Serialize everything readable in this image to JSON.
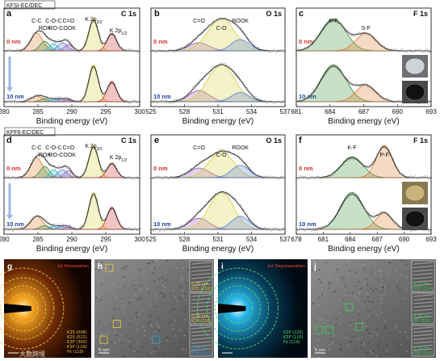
{
  "colors": {
    "raw": "#8a8a8a",
    "fit": "#1a1a1a",
    "green": "#3a8f3a",
    "yellow": "#d4cf3a",
    "blue": "#5b7fd6",
    "orange": "#e07b2a",
    "red": "#d0302b",
    "purple": "#9b59b6",
    "cyan": "#2bbfcf",
    "depth0": "#d0302b",
    "depth10": "#1f3f9f"
  },
  "panels": [
    {
      "id": "a",
      "letter": "a",
      "title": "C 1s",
      "condition": "KFSI-EC/DEC",
      "xlabel": "Binding energy (eV)",
      "ticks": [
        "280",
        "285",
        "290",
        "295",
        "300"
      ],
      "depth_top": "0 nm",
      "depth_bottom": "10 nm",
      "peak_labels": [
        "C-C",
        "ROK",
        "C-O-C",
        "RO-COOK",
        "C=O",
        "K 2p3/2",
        "K 2p1/2"
      ],
      "chart_data": {
        "type": "line",
        "xlim": [
          280,
          300
        ],
        "x_reversed": false,
        "components_top": [
          {
            "name": "C-C",
            "center": 284.8,
            "color": "orange"
          },
          {
            "name": "ROK",
            "center": 286.0,
            "color": "green"
          },
          {
            "name": "C-O-C",
            "center": 287.3,
            "color": "cyan"
          },
          {
            "name": "RO-COOK",
            "center": 288.6,
            "color": "blue"
          },
          {
            "name": "C=O",
            "center": 289.5,
            "color": "purple"
          },
          {
            "name": "K 2p3/2",
            "center": 293.2,
            "color": "yellow"
          },
          {
            "name": "K 2p1/2",
            "center": 295.9,
            "color": "red"
          }
        ]
      }
    },
    {
      "id": "b",
      "letter": "b",
      "title": "O 1s",
      "condition": "",
      "xlabel": "Binding energy (eV)",
      "ticks": [
        "525",
        "528",
        "531",
        "534",
        "537"
      ],
      "depth_top": "0 nm",
      "depth_bottom": "10 nm",
      "peak_labels": [
        "C=O",
        "C-O",
        "ROOK"
      ],
      "chart_data": {
        "type": "line",
        "xlim": [
          525,
          537
        ],
        "components": [
          {
            "name": "C=O",
            "center": 529.3,
            "color": "purple"
          },
          {
            "name": "C-O",
            "center": 531.3,
            "color": "yellow"
          },
          {
            "name": "ROOK",
            "center": 533.0,
            "color": "blue"
          }
        ]
      }
    },
    {
      "id": "c",
      "letter": "c",
      "title": "F 1s",
      "condition": "",
      "xlabel": "Binding energy (eV)",
      "ticks": [
        "681",
        "684",
        "687",
        "690",
        "693"
      ],
      "depth_top": "0 nm",
      "depth_bottom": "10 nm",
      "peak_labels": [
        "K-F",
        "S-F"
      ],
      "chart_data": {
        "type": "line",
        "xlim": [
          681,
          693
        ],
        "components": [
          {
            "name": "K-F",
            "center": 684.3,
            "color": "green"
          },
          {
            "name": "S-F",
            "center": 687.2,
            "color": "orange"
          }
        ]
      }
    },
    {
      "id": "d",
      "letter": "d",
      "title": "C 1s",
      "condition": "KPF6-EC/DEC",
      "xlabel": "Binding energy (eV)",
      "ticks": [
        "280",
        "285",
        "290",
        "295",
        "300"
      ],
      "depth_top": "0 nm",
      "depth_bottom": "10 nm",
      "peak_labels": [
        "C-C",
        "ROK",
        "C-O-C",
        "RO-COOK",
        "C=O",
        "K 2p3/2",
        "K 2p1/2"
      ],
      "chart_data": {
        "type": "line",
        "xlim": [
          280,
          300
        ],
        "components": [
          {
            "name": "C-C",
            "center": 284.8,
            "color": "orange"
          },
          {
            "name": "ROK",
            "center": 286.0,
            "color": "green"
          },
          {
            "name": "C-O-C",
            "center": 287.3,
            "color": "cyan"
          },
          {
            "name": "RO-COOK",
            "center": 288.6,
            "color": "blue"
          },
          {
            "name": "C=O",
            "center": 289.5,
            "color": "purple"
          },
          {
            "name": "K 2p3/2",
            "center": 293.2,
            "color": "yellow"
          },
          {
            "name": "K 2p1/2",
            "center": 295.9,
            "color": "red"
          }
        ]
      }
    },
    {
      "id": "e",
      "letter": "e",
      "title": "O 1s",
      "condition": "",
      "xlabel": "Binding energy (eV)",
      "ticks": [
        "525",
        "528",
        "531",
        "534",
        "537"
      ],
      "depth_top": "0 nm",
      "depth_bottom": "10 nm",
      "peak_labels": [
        "C=O",
        "C-O",
        "ROOK"
      ],
      "chart_data": {
        "type": "line",
        "xlim": [
          525,
          537
        ],
        "components": [
          {
            "name": "C=O",
            "center": 529.3,
            "color": "purple"
          },
          {
            "name": "C-O",
            "center": 531.3,
            "color": "yellow"
          },
          {
            "name": "ROOK",
            "center": 533.0,
            "color": "blue"
          }
        ]
      }
    },
    {
      "id": "f",
      "letter": "f",
      "title": "F 1s",
      "condition": "",
      "xlabel": "Binding energy (eV)",
      "ticks": [
        "678",
        "681",
        "684",
        "687",
        "690",
        "693"
      ],
      "depth_top": "0 nm",
      "depth_bottom": "10 nm",
      "peak_labels": [
        "K-F",
        "P-F"
      ],
      "chart_data": {
        "type": "line",
        "xlim": [
          678,
          693
        ],
        "components": [
          {
            "name": "K-F",
            "center": 684.2,
            "color": "green"
          },
          {
            "name": "P-F",
            "center": 687.8,
            "color": "orange"
          }
        ]
      }
    }
  ],
  "images": [
    {
      "id": "g",
      "letter": "g",
      "caption": "1st Potassiation",
      "type": "diffraction",
      "rings": [
        "K2S (008)",
        "K2S (022)",
        "K3P (300)",
        "K3P (110)",
        "Fe (110)"
      ]
    },
    {
      "id": "h",
      "letter": "h",
      "caption": "",
      "type": "hrtem",
      "scale": "5 nm",
      "insets": [
        "0.20 nm K2S (220)",
        "0.20 nm K2P (110)",
        "0.25 nm K3P (110)"
      ]
    },
    {
      "id": "i",
      "letter": "i",
      "caption": "1st Depotassiation",
      "type": "diffraction",
      "rings": [
        "K2P (220)",
        "K3P (110)",
        "Fe (110)"
      ]
    },
    {
      "id": "j",
      "letter": "j",
      "caption": "",
      "type": "hrtem",
      "scale": "5 nm",
      "insets": [
        "0.23 nm K3P (110)",
        "0.20 nm KP (220)",
        "0.25 nm K3P (110)"
      ]
    }
  ],
  "watermark": "大数跨境"
}
